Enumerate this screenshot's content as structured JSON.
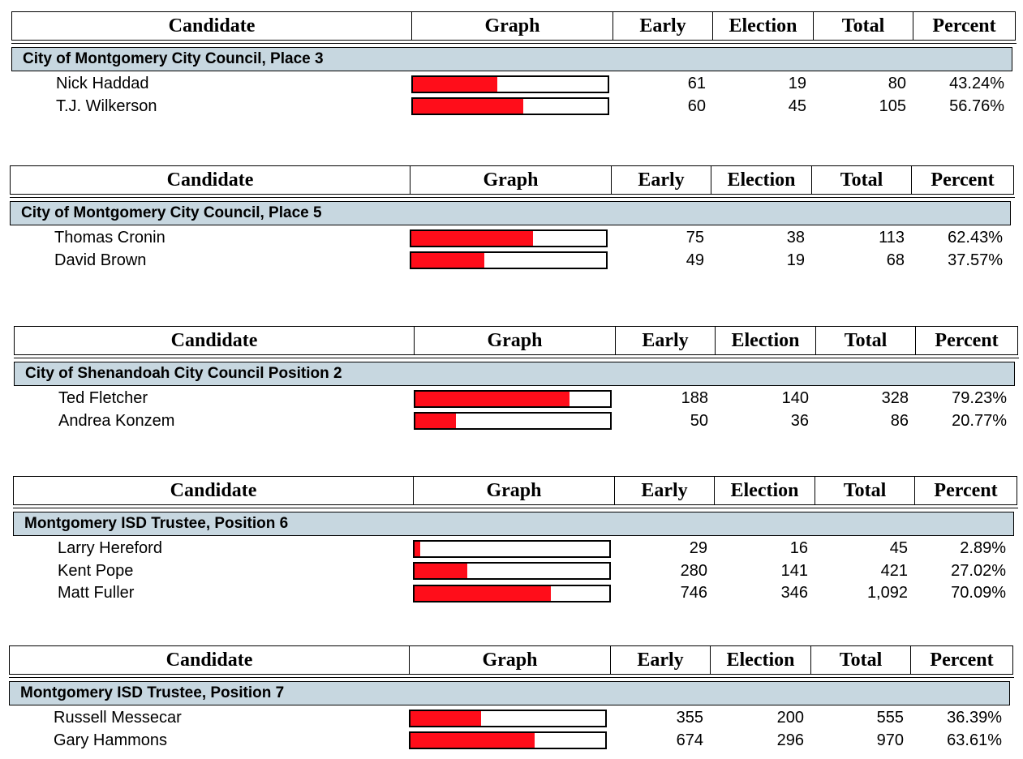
{
  "headers": {
    "candidate": "Candidate",
    "graph": "Graph",
    "early": "Early",
    "election": "Election",
    "total": "Total",
    "percent": "Percent"
  },
  "colors": {
    "bar_fill": "#ff0d1a",
    "race_bg": "#c7d7e0"
  },
  "races": [
    {
      "title": "City of Montgomery City Council, Place 3",
      "candidates": [
        {
          "name": "Nick Haddad",
          "early": "61",
          "election": "19",
          "total": "80",
          "percent": "43.24%",
          "share": 43.24
        },
        {
          "name": "T.J. Wilkerson",
          "early": "60",
          "election": "45",
          "total": "105",
          "percent": "56.76%",
          "share": 56.76
        }
      ]
    },
    {
      "title": "City of Montgomery City Council, Place 5",
      "candidates": [
        {
          "name": "Thomas Cronin",
          "early": "75",
          "election": "38",
          "total": "113",
          "percent": "62.43%",
          "share": 62.43
        },
        {
          "name": "David Brown",
          "early": "49",
          "election": "19",
          "total": "68",
          "percent": "37.57%",
          "share": 37.57
        }
      ]
    },
    {
      "title": "City of Shenandoah City Council Position 2",
      "candidates": [
        {
          "name": "Ted Fletcher",
          "early": "188",
          "election": "140",
          "total": "328",
          "percent": "79.23%",
          "share": 79.23
        },
        {
          "name": "Andrea Konzem",
          "early": "50",
          "election": "36",
          "total": "86",
          "percent": "20.77%",
          "share": 20.77
        }
      ]
    },
    {
      "title": "Montgomery ISD Trustee, Position 6",
      "candidates": [
        {
          "name": "Larry Hereford",
          "early": "29",
          "election": "16",
          "total": "45",
          "percent": "2.89%",
          "share": 2.89
        },
        {
          "name": "Kent Pope",
          "early": "280",
          "election": "141",
          "total": "421",
          "percent": "27.02%",
          "share": 27.02
        },
        {
          "name": "Matt Fuller",
          "early": "746",
          "election": "346",
          "total": "1,092",
          "percent": "70.09%",
          "share": 70.09
        }
      ]
    },
    {
      "title": "Montgomery ISD Trustee, Position 7",
      "candidates": [
        {
          "name": "Russell Messecar",
          "early": "355",
          "election": "200",
          "total": "555",
          "percent": "36.39%",
          "share": 36.39
        },
        {
          "name": "Gary Hammons",
          "early": "674",
          "election": "296",
          "total": "970",
          "percent": "63.61%",
          "share": 63.61
        }
      ]
    }
  ]
}
